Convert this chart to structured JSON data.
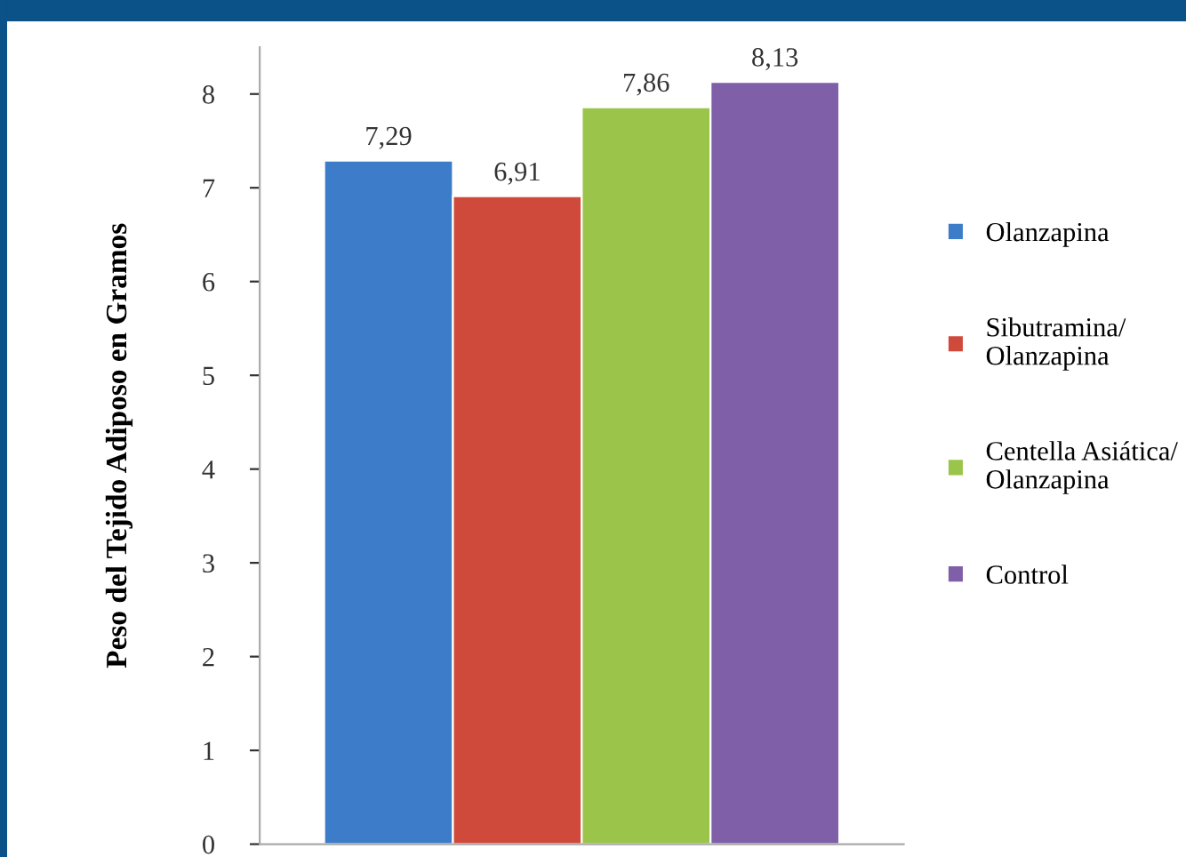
{
  "chart_data": {
    "type": "bar",
    "ylabel": "Peso del Tejido Adiposo en Gramos",
    "categories": [
      null
    ],
    "series": [
      {
        "name": "Olanzapina",
        "color": "#3d7cc9",
        "values": [
          7.29
        ],
        "value_labels": [
          "7,29"
        ]
      },
      {
        "name": "Sibutramina/\nOlanzapina",
        "color": "#d04a3c",
        "values": [
          6.91
        ],
        "value_labels": [
          "6,91"
        ]
      },
      {
        "name": "Centella Asiática/\nOlanzapina",
        "color": "#9bc54a",
        "values": [
          7.86
        ],
        "value_labels": [
          "7,86"
        ]
      },
      {
        "name": "Control",
        "color": "#7f5fa8",
        "values": [
          8.13
        ],
        "value_labels": [
          "8,13"
        ]
      }
    ],
    "ylim": [
      0,
      8.5
    ],
    "yticks": [
      0,
      1,
      2,
      3,
      4,
      5,
      6,
      7,
      8
    ],
    "grid": false,
    "legend": "right"
  }
}
